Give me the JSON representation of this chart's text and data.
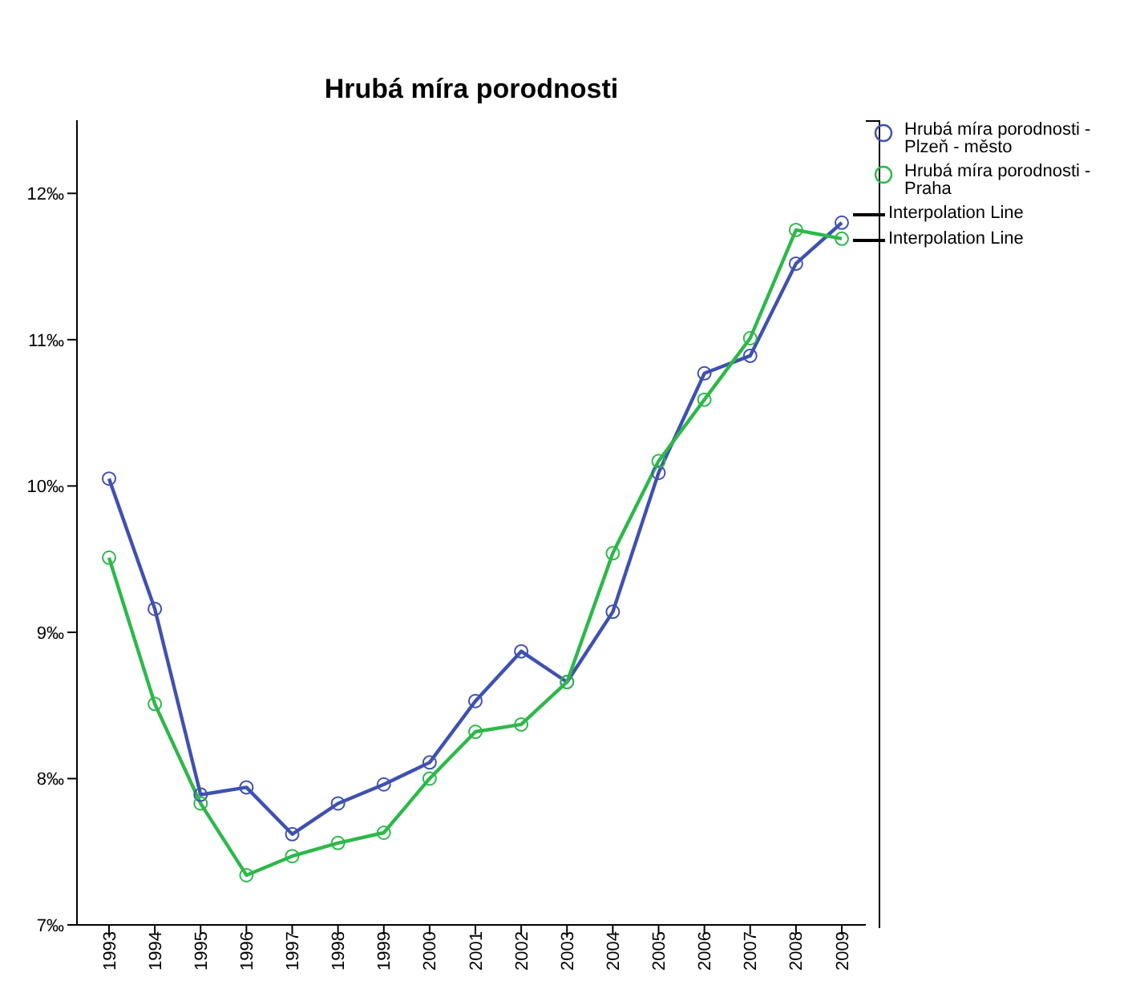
{
  "chart_data": {
    "type": "line",
    "title": "Hrubá míra porodnosti",
    "categories": [
      "1993",
      "1994",
      "1995",
      "1996",
      "1997",
      "1998",
      "1999",
      "2000",
      "2001",
      "2002",
      "2003",
      "2004",
      "2005",
      "2006",
      "2007",
      "2008",
      "2009"
    ],
    "series": [
      {
        "name": "Hrubá míra porodnosti - Plzeň - město",
        "color": "#3f51b0",
        "values": [
          10.05,
          9.16,
          7.89,
          7.94,
          7.62,
          7.83,
          7.96,
          8.11,
          8.53,
          8.87,
          8.66,
          9.14,
          10.09,
          10.77,
          10.89,
          11.52,
          11.8
        ]
      },
      {
        "name": "Hrubá míra porodnosti - Praha",
        "color": "#2db84a",
        "values": [
          9.51,
          8.51,
          7.83,
          7.34,
          7.47,
          7.56,
          7.63,
          8.0,
          8.32,
          8.37,
          8.66,
          9.54,
          10.17,
          10.59,
          11.01,
          11.75,
          11.69
        ]
      }
    ],
    "ylim": [
      7,
      12.5
    ],
    "yticks": [
      {
        "value": 7,
        "label": "7‰"
      },
      {
        "value": 8,
        "label": "8‰"
      },
      {
        "value": 9,
        "label": "9‰"
      },
      {
        "value": 10,
        "label": "10‰"
      },
      {
        "value": 11,
        "label": "11‰"
      },
      {
        "value": 12,
        "label": "12‰"
      }
    ],
    "annotations": [
      "Interpolation Line",
      "Interpolation Line"
    ],
    "grid": false,
    "legend": "top right",
    "marker": "circle",
    "line_style": "solid"
  }
}
